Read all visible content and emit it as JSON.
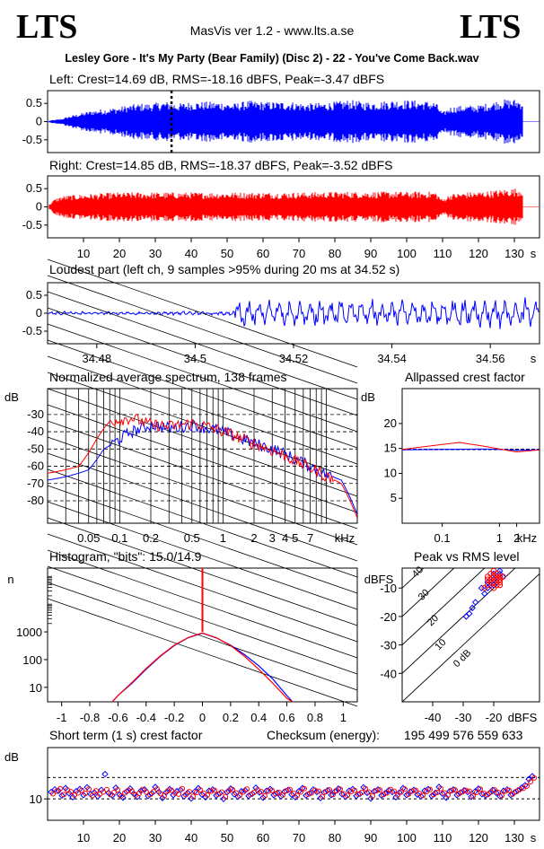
{
  "header": {
    "logo_left": "LTS",
    "logo_right": "LTS",
    "app_title": "MasVis ver 1.2 - www.lts.a.se",
    "file_title": "Lesley Gore - It's My Party (Bear Family) (Disc 2) - 22 - You've Come Back.wav"
  },
  "colors": {
    "left": "#0000ff",
    "right": "#ff0000",
    "grid": "#000000"
  },
  "chart_data": [
    {
      "id": "left-waveform",
      "type": "area",
      "title": "Left: Crest=14.69 dB, RMS=-18.16 dBFS, Peak=-3.47 dBFS",
      "ylim": [
        -0.85,
        0.85
      ],
      "yticks": [
        0.5,
        0,
        -0.5
      ],
      "ytick_labels": [
        "0.5",
        "0",
        "-0.5"
      ],
      "xlim": [
        0,
        137
      ],
      "marker_x": 34.52,
      "envelope": {
        "x": [
          0,
          2,
          4,
          6,
          8,
          10,
          12,
          14,
          16,
          18,
          20,
          22,
          24,
          26,
          28,
          30,
          32,
          34,
          36,
          38,
          40,
          44,
          48,
          52,
          56,
          60,
          64,
          68,
          72,
          76,
          80,
          84,
          88,
          92,
          96,
          100,
          104,
          108,
          110,
          112,
          116,
          120,
          122,
          124,
          126,
          128,
          130,
          132,
          134
        ],
        "amp": [
          0.02,
          0.05,
          0.08,
          0.15,
          0.2,
          0.25,
          0.3,
          0.33,
          0.35,
          0.38,
          0.4,
          0.45,
          0.48,
          0.5,
          0.5,
          0.52,
          0.55,
          0.55,
          0.5,
          0.52,
          0.55,
          0.55,
          0.55,
          0.5,
          0.58,
          0.55,
          0.55,
          0.55,
          0.5,
          0.52,
          0.55,
          0.6,
          0.55,
          0.55,
          0.6,
          0.6,
          0.58,
          0.55,
          0.25,
          0.4,
          0.45,
          0.45,
          0.5,
          0.55,
          0.6,
          0.62,
          0.62,
          0.6,
          0.6
        ]
      }
    },
    {
      "id": "right-waveform",
      "type": "area",
      "title": "Right: Crest=14.85 dB, RMS=-18.37 dBFS, Peak=-3.52 dBFS",
      "ylim": [
        -0.85,
        0.85
      ],
      "yticks": [
        0.5,
        0,
        -0.5
      ],
      "ytick_labels": [
        "0.5",
        "0",
        "-0.5"
      ],
      "xlim": [
        0,
        137
      ],
      "xticks": [
        10,
        20,
        30,
        40,
        50,
        60,
        70,
        80,
        90,
        100,
        110,
        120,
        130
      ],
      "xtick_labels": [
        "10",
        "20",
        "30",
        "40",
        "50",
        "60",
        "70",
        "80",
        "90",
        "100",
        "110",
        "120",
        "130"
      ],
      "xunit": "s",
      "envelope": {
        "x": [
          0,
          2,
          4,
          6,
          10,
          16,
          20,
          30,
          40,
          50,
          60,
          70,
          80,
          90,
          100,
          108,
          110,
          112,
          116,
          120,
          124,
          128,
          132,
          134
        ],
        "amp": [
          0.02,
          0.22,
          0.3,
          0.32,
          0.35,
          0.38,
          0.4,
          0.4,
          0.4,
          0.4,
          0.4,
          0.4,
          0.42,
          0.42,
          0.42,
          0.42,
          0.2,
          0.35,
          0.4,
          0.42,
          0.45,
          0.5,
          0.52,
          0.5
        ]
      }
    },
    {
      "id": "loudest-part",
      "type": "line",
      "title": "Loudest part (left  ch, 9 samples >95% during 20 ms at 34.52 s)",
      "ylim": [
        -0.85,
        0.85
      ],
      "yticks": [
        0.5,
        0,
        -0.5
      ],
      "ytick_labels": [
        "0.5",
        "0",
        "-0.5"
      ],
      "xlim": [
        34.47,
        34.57
      ],
      "xticks": [
        34.48,
        34.5,
        34.52,
        34.54,
        34.56
      ],
      "xtick_labels": [
        "34.48",
        "34.5",
        "34.52",
        "34.54",
        "34.56"
      ],
      "xunit": "s",
      "quiet_until": 34.508,
      "quiet_amp": 0.06,
      "loud_amp": 0.38
    },
    {
      "id": "avg-spectrum",
      "type": "line",
      "title": "Normalized average spectrum, 138 frames",
      "ylabel": "dB",
      "xunit": "kHz",
      "xlim": [
        0.02,
        20
      ],
      "ylim": [
        -93,
        -15
      ],
      "yticks": [
        -30,
        -40,
        -50,
        -60,
        -70,
        -80
      ],
      "ytick_labels": [
        "-30",
        "-40",
        "-50",
        "-60",
        "-70",
        "-80"
      ],
      "xtick_values": [
        0.05,
        0.1,
        0.2,
        0.5,
        1,
        2,
        3,
        4,
        5,
        7
      ],
      "xtick_labels": [
        "0.05",
        "0.1",
        "0.2",
        "0.5",
        "1",
        "2",
        "3",
        "4",
        "5",
        "7"
      ],
      "series": [
        {
          "color": "#0000ff",
          "x": [
            0.02,
            0.03,
            0.04,
            0.05,
            0.06,
            0.07,
            0.08,
            0.1,
            0.13,
            0.2,
            0.3,
            0.5,
            0.7,
            1,
            1.5,
            2,
            3,
            4,
            5,
            7,
            10,
            14,
            17,
            20
          ],
          "y": [
            -68,
            -66,
            -64,
            -62,
            -56,
            -50,
            -48,
            -44,
            -40,
            -36,
            -38,
            -36,
            -38,
            -40,
            -44,
            -47,
            -50,
            -53,
            -56,
            -60,
            -65,
            -68,
            -78,
            -88
          ]
        },
        {
          "color": "#ff0000",
          "x": [
            0.02,
            0.03,
            0.04,
            0.05,
            0.06,
            0.07,
            0.08,
            0.1,
            0.13,
            0.2,
            0.3,
            0.5,
            0.7,
            1,
            1.5,
            2,
            3,
            4,
            5,
            7,
            10,
            14,
            17,
            20
          ],
          "y": [
            -64,
            -62,
            -60,
            -52,
            -44,
            -38,
            -34,
            -33,
            -32,
            -36,
            -37,
            -35,
            -37,
            -40,
            -44,
            -47,
            -51,
            -54,
            -57,
            -61,
            -66,
            -70,
            -80,
            -90
          ]
        }
      ]
    },
    {
      "id": "allpassed-crest",
      "type": "line",
      "title": "Allpassed crest factor",
      "ylabel": "dB",
      "xunit": "kHz",
      "xlim": [
        0.02,
        5
      ],
      "ylim": [
        0,
        27
      ],
      "yticks": [
        20,
        15,
        10,
        5
      ],
      "ytick_labels": [
        "20",
        "15",
        "10",
        "5"
      ],
      "xtick_values": [
        0.1,
        1,
        2
      ],
      "xtick_labels": [
        "0.1",
        "1",
        "2"
      ],
      "reference": 14.8,
      "series": [
        {
          "color": "#0000ff",
          "x": [
            0.02,
            0.1,
            0.5,
            1,
            2,
            5
          ],
          "y": [
            14.7,
            14.8,
            14.9,
            14.8,
            14.6,
            14.7
          ]
        },
        {
          "color": "#ff0000",
          "x": [
            0.02,
            0.1,
            0.2,
            0.5,
            1,
            2,
            5
          ],
          "y": [
            14.8,
            15.8,
            16.2,
            15.5,
            14.9,
            14.3,
            14.7
          ]
        }
      ]
    },
    {
      "id": "histogram",
      "type": "line",
      "title": "Histogram, \"bits\": 15.0/14.9",
      "ylabel": "n",
      "xlim": [
        -1.1,
        1.1
      ],
      "ylim_log": [
        3,
        200000
      ],
      "yticks": [
        1000,
        100,
        10
      ],
      "ytick_labels": [
        "1000",
        "100",
        "10"
      ],
      "xtick_values": [
        -1,
        -0.8,
        -0.6,
        -0.4,
        -0.2,
        0,
        0.2,
        0.4,
        0.6,
        0.8,
        1
      ],
      "xtick_labels": [
        "-1",
        "-0.8",
        "-0.6",
        "-0.4",
        "-0.2",
        "0",
        "0.2",
        "0.4",
        "0.6",
        "0.8",
        "1"
      ],
      "series": [
        {
          "color": "#0000ff",
          "x": [
            -0.64,
            -0.6,
            -0.5,
            -0.4,
            -0.3,
            -0.2,
            -0.1,
            0,
            0.1,
            0.2,
            0.3,
            0.4,
            0.5,
            0.6,
            0.64
          ],
          "y": [
            3,
            5,
            14,
            45,
            130,
            320,
            620,
            900,
            600,
            330,
            150,
            60,
            20,
            5,
            3
          ]
        },
        {
          "color": "#ff0000",
          "x": [
            -0.64,
            -0.6,
            -0.5,
            -0.4,
            -0.3,
            -0.2,
            -0.1,
            0,
            0.1,
            0.2,
            0.3,
            0.4,
            0.5,
            0.6,
            0.64
          ],
          "y": [
            3,
            5,
            15,
            48,
            135,
            330,
            630,
            920,
            610,
            320,
            130,
            45,
            14,
            4,
            3
          ]
        }
      ],
      "spike": {
        "x": 0,
        "y": 200000
      }
    },
    {
      "id": "peak-vs-rms",
      "type": "scatter",
      "title": "Peak vs RMS level",
      "ylabel": "dBFS",
      "xunit": "dBFS",
      "xlim": [
        -50,
        -5
      ],
      "ylim": [
        -50,
        -3
      ],
      "yticks": [
        -10,
        -20,
        -30,
        -40
      ],
      "ytick_labels": [
        "-10",
        "-20",
        "-30",
        "-40"
      ],
      "xtick_values": [
        -40,
        -30,
        -20
      ],
      "xtick_labels": [
        "-40",
        "-30",
        "-20"
      ],
      "diagonal_labels": [
        "40",
        "30",
        "20",
        "10",
        "0 dB"
      ],
      "series": [
        {
          "color": "#0000ff",
          "x": [
            -29,
            -28,
            -27,
            -26,
            -24,
            -22,
            -21,
            -20,
            -19,
            -18,
            -20,
            -22,
            -19,
            -18,
            -17,
            -21,
            -23,
            -20,
            -19,
            -18
          ],
          "y": [
            -20,
            -19,
            -17,
            -15,
            -10,
            -10,
            -8,
            -7,
            -6,
            -6,
            -5,
            -8,
            -8,
            -5,
            -6,
            -9,
            -12,
            -9,
            -7,
            -4
          ]
        },
        {
          "color": "#ff0000",
          "x": [
            -23,
            -22,
            -21,
            -20,
            -19,
            -18,
            -20,
            -21,
            -22,
            -19,
            -18,
            -17,
            -20,
            -21,
            -19,
            -18,
            -22,
            -20,
            -19,
            -18
          ],
          "y": [
            -10,
            -9,
            -8,
            -8,
            -7,
            -6,
            -6,
            -5,
            -7,
            -9,
            -8,
            -6,
            -10,
            -7,
            -5,
            -7,
            -6,
            -4,
            -6,
            -9
          ]
        }
      ]
    },
    {
      "id": "short-term-crest",
      "type": "scatter",
      "title": "Short term (1 s) crest factor",
      "ylabel": "dB",
      "xunit": "s",
      "xlim": [
        0,
        137
      ],
      "ylim": [
        5,
        22
      ],
      "yticks": [
        10
      ],
      "ytick_labels": [
        "10"
      ],
      "dashed_y": [
        10,
        15
      ],
      "xtick_values": [
        10,
        20,
        30,
        40,
        50,
        60,
        70,
        80,
        90,
        100,
        110,
        120,
        130
      ],
      "xtick_labels": [
        "10",
        "20",
        "30",
        "40",
        "50",
        "60",
        "70",
        "80",
        "90",
        "100",
        "110",
        "120",
        "130"
      ],
      "series": [
        {
          "color": "#0000ff",
          "y": [
            11.6,
            12.2,
            11.9,
            10.8,
            12.5,
            11.3,
            10.4,
            11.8,
            12.3,
            10.9,
            12.7,
            11.1,
            11.5,
            10.6,
            12.1,
            15.8,
            11.4,
            10.8,
            12.6,
            11.0,
            10.3,
            11.7,
            12.4,
            11.2,
            10.5,
            11.9,
            12.2,
            10.7,
            11.3,
            12.8,
            11.6,
            10.2,
            11.5,
            12.3,
            10.9,
            11.8,
            12.1,
            10.6,
            11.4,
            10.1,
            11.7,
            12.5,
            11.0,
            10.4,
            11.9,
            12.2,
            10.8,
            11.3,
            10.0,
            11.6,
            12.4,
            11.1,
            10.5,
            11.8,
            12.0,
            10.7,
            11.2,
            12.6,
            11.5,
            10.3,
            11.9,
            12.3,
            10.9,
            11.4,
            10.6,
            11.7,
            12.1,
            11.0,
            10.4,
            11.8,
            12.5,
            10.8,
            11.3,
            12.2,
            11.6,
            10.2,
            11.5,
            12.0,
            10.9,
            11.7,
            12.4,
            11.1,
            10.5,
            11.9,
            12.3,
            10.7,
            11.2,
            12.7,
            11.4,
            10.1,
            11.8,
            12.2,
            10.8,
            11.3,
            12.0,
            11.6,
            10.4,
            11.5,
            12.5,
            10.9,
            11.7,
            12.1,
            11.0,
            10.6,
            11.9,
            12.3,
            10.7,
            11.4,
            12.8,
            11.2,
            10.3,
            11.8,
            12.2,
            10.9,
            11.5,
            12.0,
            11.6,
            10.5,
            11.7,
            12.4,
            11.1,
            10.8,
            11.3,
            12.1,
            11.4,
            10.6,
            11.9,
            12.2,
            10.9,
            11.5,
            12.0,
            12.6,
            13.2,
            14.6,
            15.3
          ],
          "x0": 1,
          "dx": 1
        },
        {
          "color": "#ff0000",
          "y": [
            11.2,
            11.8,
            12.4,
            11.0,
            12.1,
            11.7,
            10.9,
            11.4,
            12.0,
            11.3,
            12.3,
            10.8,
            11.9,
            11.1,
            11.6,
            12.2,
            11.0,
            11.5,
            12.1,
            10.7,
            11.4,
            12.0,
            11.8,
            10.9,
            11.3,
            12.2,
            11.6,
            11.0,
            11.7,
            12.3,
            11.2,
            10.8,
            11.9,
            12.0,
            11.4,
            11.1,
            12.4,
            11.0,
            11.7,
            10.6,
            11.5,
            12.1,
            11.3,
            10.9,
            11.8,
            12.0,
            11.1,
            11.6,
            10.5,
            11.9,
            12.2,
            11.4,
            10.8,
            11.6,
            12.3,
            11.0,
            11.5,
            12.1,
            11.7,
            10.7,
            11.8,
            12.0,
            11.2,
            11.5,
            10.9,
            11.9,
            12.2,
            11.3,
            10.8,
            11.6,
            12.4,
            11.1,
            11.4,
            12.0,
            11.8,
            10.6,
            11.7,
            12.1,
            11.0,
            11.9,
            12.3,
            11.2,
            10.8,
            11.7,
            12.0,
            11.1,
            11.5,
            12.4,
            11.6,
            10.7,
            11.9,
            12.1,
            11.0,
            11.4,
            12.2,
            11.8,
            10.9,
            11.6,
            12.3,
            11.1,
            11.8,
            12.0,
            11.3,
            10.8,
            11.7,
            12.2,
            11.0,
            11.5,
            12.4,
            11.4,
            10.9,
            11.9,
            12.1,
            11.2,
            11.6,
            12.0,
            11.8,
            10.7,
            11.5,
            12.3,
            11.3,
            11.0,
            11.6,
            12.1,
            11.5,
            10.8,
            11.8,
            12.0,
            11.1,
            11.7,
            12.2,
            12.5,
            13.0,
            14.0,
            14.9
          ],
          "x0": 1.5,
          "dx": 1
        }
      ]
    }
  ],
  "checksum": {
    "label": "Checksum (energy):",
    "value": "195 499 576 559 633"
  }
}
